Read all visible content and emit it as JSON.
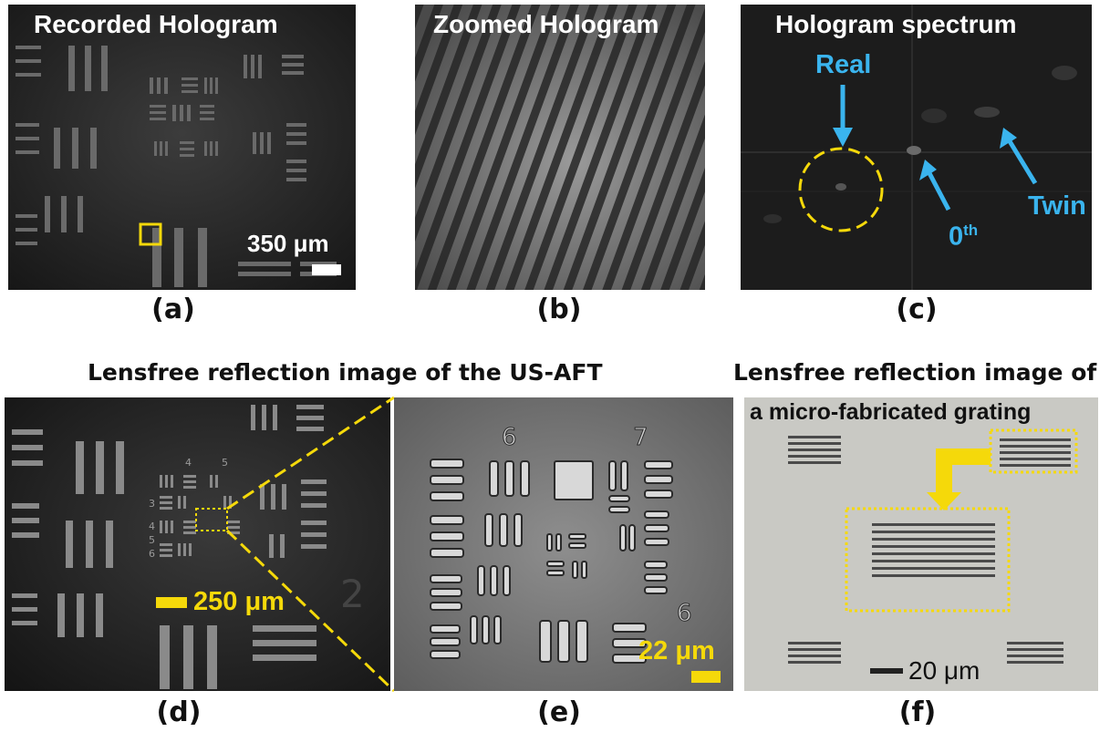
{
  "panels": {
    "a": {
      "letter": "(a)",
      "title": "Recorded Hologram",
      "scale_label": "350 μm"
    },
    "b": {
      "letter": "(b)",
      "title": "Zoomed Hologram"
    },
    "c": {
      "letter": "(c)",
      "title": "Hologram spectrum",
      "real_label": "Real",
      "zeroth_label": "0",
      "zeroth_sup": "th",
      "twin_label": "Twin"
    },
    "d": {
      "letter": "(d)",
      "scale_label": "250 μm",
      "group_numbers": [
        "2",
        "4",
        "5",
        "3",
        "4",
        "5",
        "6"
      ]
    },
    "e": {
      "letter": "(e)",
      "scale_label": "22 μm",
      "group_numbers": [
        "6",
        "7",
        "6"
      ]
    },
    "f": {
      "letter": "(f)",
      "scale_label": "20 μm"
    }
  },
  "captions": {
    "us_aft": "Lensfree reflection image of the US-AFT",
    "grating_line1": "Lensfree reflection image of",
    "grating_line2": "a micro-fabricated grating"
  },
  "colors": {
    "highlight_yellow": "#f5d90a",
    "annotation_blue": "#3ab4ee",
    "dark_background": "#1a1a1a",
    "grating_background": "#c9c9c4"
  }
}
